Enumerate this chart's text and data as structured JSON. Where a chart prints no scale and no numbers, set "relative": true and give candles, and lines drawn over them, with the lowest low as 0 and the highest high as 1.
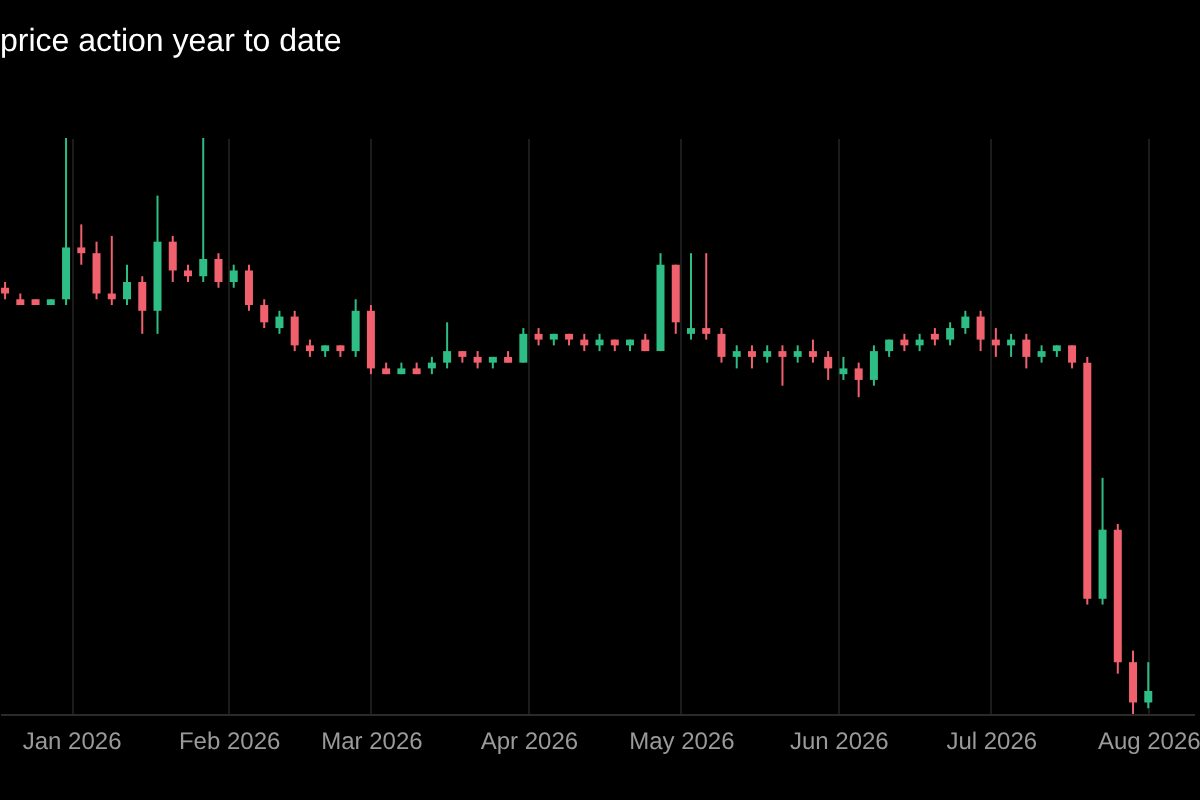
{
  "chart_data": {
    "type": "candlestick",
    "title": "price action year to date",
    "relative": true,
    "grid": "x",
    "x": [
      "2025-12-19",
      "2025-12-22",
      "2025-12-25",
      "2025-12-28",
      "2025-12-31",
      "2026-01-03",
      "2026-01-06",
      "2026-01-09",
      "2026-01-12",
      "2026-01-15",
      "2026-01-18",
      "2026-01-21",
      "2026-01-24",
      "2026-01-27",
      "2026-01-30",
      "2026-02-02",
      "2026-02-05",
      "2026-02-08",
      "2026-02-11",
      "2026-02-14",
      "2026-02-17",
      "2026-02-20",
      "2026-02-23",
      "2026-02-26",
      "2026-03-01",
      "2026-03-04",
      "2026-03-07",
      "2026-03-10",
      "2026-03-13",
      "2026-03-16",
      "2026-03-19",
      "2026-03-22",
      "2026-03-25",
      "2026-03-28",
      "2026-03-31",
      "2026-04-03",
      "2026-04-06",
      "2026-04-09",
      "2026-04-12",
      "2026-04-15",
      "2026-04-18",
      "2026-04-21",
      "2026-04-24",
      "2026-04-27",
      "2026-04-30",
      "2026-05-03",
      "2026-05-06",
      "2026-05-09",
      "2026-05-12",
      "2026-05-15",
      "2026-05-18",
      "2026-05-21",
      "2026-05-24",
      "2026-05-27",
      "2026-05-30",
      "2026-06-02",
      "2026-06-05",
      "2026-06-08",
      "2026-06-11",
      "2026-06-14",
      "2026-06-17",
      "2026-06-20",
      "2026-06-23",
      "2026-06-26",
      "2026-06-29",
      "2026-07-02",
      "2026-07-05",
      "2026-07-08",
      "2026-07-11",
      "2026-07-14",
      "2026-07-17",
      "2026-07-20",
      "2026-07-23",
      "2026-07-26",
      "2026-07-29",
      "2026-08-01"
    ],
    "ohlc": [
      [
        0.74,
        0.75,
        0.72,
        0.73
      ],
      [
        0.72,
        0.73,
        0.71,
        0.71
      ],
      [
        0.72,
        0.72,
        0.71,
        0.71
      ],
      [
        0.71,
        0.72,
        0.71,
        0.72
      ],
      [
        0.72,
        1.0,
        0.71,
        0.81
      ],
      [
        0.81,
        0.85,
        0.78,
        0.8
      ],
      [
        0.8,
        0.82,
        0.72,
        0.73
      ],
      [
        0.73,
        0.83,
        0.71,
        0.72
      ],
      [
        0.72,
        0.78,
        0.71,
        0.75
      ],
      [
        0.75,
        0.76,
        0.66,
        0.7
      ],
      [
        0.7,
        0.9,
        0.66,
        0.82
      ],
      [
        0.82,
        0.83,
        0.75,
        0.77
      ],
      [
        0.77,
        0.78,
        0.75,
        0.76
      ],
      [
        0.76,
        1.0,
        0.75,
        0.79
      ],
      [
        0.79,
        0.8,
        0.74,
        0.75
      ],
      [
        0.75,
        0.78,
        0.74,
        0.77
      ],
      [
        0.77,
        0.78,
        0.7,
        0.71
      ],
      [
        0.71,
        0.72,
        0.67,
        0.68
      ],
      [
        0.67,
        0.7,
        0.66,
        0.69
      ],
      [
        0.69,
        0.7,
        0.63,
        0.64
      ],
      [
        0.64,
        0.65,
        0.62,
        0.63
      ],
      [
        0.63,
        0.64,
        0.62,
        0.64
      ],
      [
        0.64,
        0.64,
        0.62,
        0.63
      ],
      [
        0.63,
        0.72,
        0.62,
        0.7
      ],
      [
        0.7,
        0.71,
        0.59,
        0.6
      ],
      [
        0.6,
        0.61,
        0.59,
        0.59
      ],
      [
        0.59,
        0.61,
        0.59,
        0.6
      ],
      [
        0.6,
        0.61,
        0.59,
        0.59
      ],
      [
        0.6,
        0.62,
        0.59,
        0.61
      ],
      [
        0.61,
        0.68,
        0.6,
        0.63
      ],
      [
        0.63,
        0.63,
        0.61,
        0.62
      ],
      [
        0.62,
        0.63,
        0.6,
        0.61
      ],
      [
        0.61,
        0.62,
        0.6,
        0.62
      ],
      [
        0.62,
        0.63,
        0.61,
        0.61
      ],
      [
        0.61,
        0.67,
        0.61,
        0.66
      ],
      [
        0.66,
        0.67,
        0.64,
        0.65
      ],
      [
        0.65,
        0.66,
        0.64,
        0.66
      ],
      [
        0.66,
        0.66,
        0.64,
        0.65
      ],
      [
        0.65,
        0.66,
        0.63,
        0.64
      ],
      [
        0.64,
        0.66,
        0.63,
        0.65
      ],
      [
        0.65,
        0.65,
        0.63,
        0.64
      ],
      [
        0.64,
        0.65,
        0.63,
        0.65
      ],
      [
        0.65,
        0.66,
        0.63,
        0.63
      ],
      [
        0.63,
        0.8,
        0.63,
        0.78
      ],
      [
        0.78,
        0.78,
        0.66,
        0.68
      ],
      [
        0.66,
        0.8,
        0.65,
        0.67
      ],
      [
        0.67,
        0.8,
        0.65,
        0.66
      ],
      [
        0.66,
        0.67,
        0.61,
        0.62
      ],
      [
        0.62,
        0.64,
        0.6,
        0.63
      ],
      [
        0.63,
        0.64,
        0.6,
        0.62
      ],
      [
        0.62,
        0.64,
        0.61,
        0.63
      ],
      [
        0.63,
        0.64,
        0.57,
        0.62
      ],
      [
        0.62,
        0.64,
        0.61,
        0.63
      ],
      [
        0.63,
        0.65,
        0.61,
        0.62
      ],
      [
        0.62,
        0.63,
        0.58,
        0.6
      ],
      [
        0.59,
        0.62,
        0.58,
        0.6
      ],
      [
        0.6,
        0.61,
        0.55,
        0.58
      ],
      [
        0.58,
        0.64,
        0.57,
        0.63
      ],
      [
        0.63,
        0.65,
        0.62,
        0.65
      ],
      [
        0.65,
        0.66,
        0.63,
        0.64
      ],
      [
        0.64,
        0.66,
        0.63,
        0.65
      ],
      [
        0.66,
        0.67,
        0.64,
        0.65
      ],
      [
        0.65,
        0.68,
        0.64,
        0.67
      ],
      [
        0.67,
        0.7,
        0.66,
        0.69
      ],
      [
        0.69,
        0.7,
        0.63,
        0.65
      ],
      [
        0.65,
        0.67,
        0.62,
        0.64
      ],
      [
        0.64,
        0.66,
        0.62,
        0.65
      ],
      [
        0.65,
        0.66,
        0.6,
        0.62
      ],
      [
        0.62,
        0.64,
        0.61,
        0.63
      ],
      [
        0.63,
        0.64,
        0.62,
        0.64
      ],
      [
        0.64,
        0.64,
        0.6,
        0.61
      ],
      [
        0.61,
        0.62,
        0.19,
        0.2
      ],
      [
        0.2,
        0.41,
        0.19,
        0.32
      ],
      [
        0.32,
        0.33,
        0.07,
        0.09
      ],
      [
        0.09,
        0.11,
        0.0,
        0.02
      ],
      [
        0.02,
        0.09,
        0.01,
        0.04
      ]
    ],
    "colors": [
      "#f0616d",
      "#f0616d",
      "#f0616d",
      "#2ebd85",
      "#2ebd85",
      "#f0616d",
      "#f0616d",
      "#f0616d",
      "#2ebd85",
      "#f0616d",
      "#2ebd85",
      "#f0616d",
      "#f0616d",
      "#2ebd85",
      "#f0616d",
      "#2ebd85",
      "#f0616d",
      "#f0616d",
      "#2ebd85",
      "#f0616d",
      "#f0616d",
      "#2ebd85",
      "#f0616d",
      "#2ebd85",
      "#f0616d",
      "#f0616d",
      "#2ebd85",
      "#f0616d",
      "#2ebd85",
      "#2ebd85",
      "#f0616d",
      "#f0616d",
      "#2ebd85",
      "#f0616d",
      "#2ebd85",
      "#f0616d",
      "#2ebd85",
      "#f0616d",
      "#f0616d",
      "#2ebd85",
      "#f0616d",
      "#2ebd85",
      "#f0616d",
      "#2ebd85",
      "#f0616d",
      "#2ebd85",
      "#f0616d",
      "#f0616d",
      "#2ebd85",
      "#f0616d",
      "#2ebd85",
      "#f0616d",
      "#2ebd85",
      "#f0616d",
      "#f0616d",
      "#2ebd85",
      "#f0616d",
      "#2ebd85",
      "#2ebd85",
      "#f0616d",
      "#2ebd85",
      "#f0616d",
      "#2ebd85",
      "#2ebd85",
      "#f0616d",
      "#f0616d",
      "#2ebd85",
      "#f0616d",
      "#2ebd85",
      "#2ebd85",
      "#f0616d",
      "#f0616d",
      "#2ebd85",
      "#f0616d",
      "#f0616d",
      "#2ebd85"
    ],
    "xlim": [
      "2025-12-18",
      "2026-08-10"
    ],
    "xticks": [
      {
        "value": "2026-01-01",
        "label": "Jan 2026"
      },
      {
        "value": "2026-02-01",
        "label": "Feb 2026"
      },
      {
        "value": "2026-03-01",
        "label": "Mar 2026"
      },
      {
        "value": "2026-04-01",
        "label": "Apr 2026"
      },
      {
        "value": "2026-05-01",
        "label": "May 2026"
      },
      {
        "value": "2026-06-01",
        "label": "Jun 2026"
      },
      {
        "value": "2026-07-01",
        "label": "Jul 2026"
      },
      {
        "value": "2026-08-01",
        "label": "Aug 2026"
      }
    ]
  }
}
